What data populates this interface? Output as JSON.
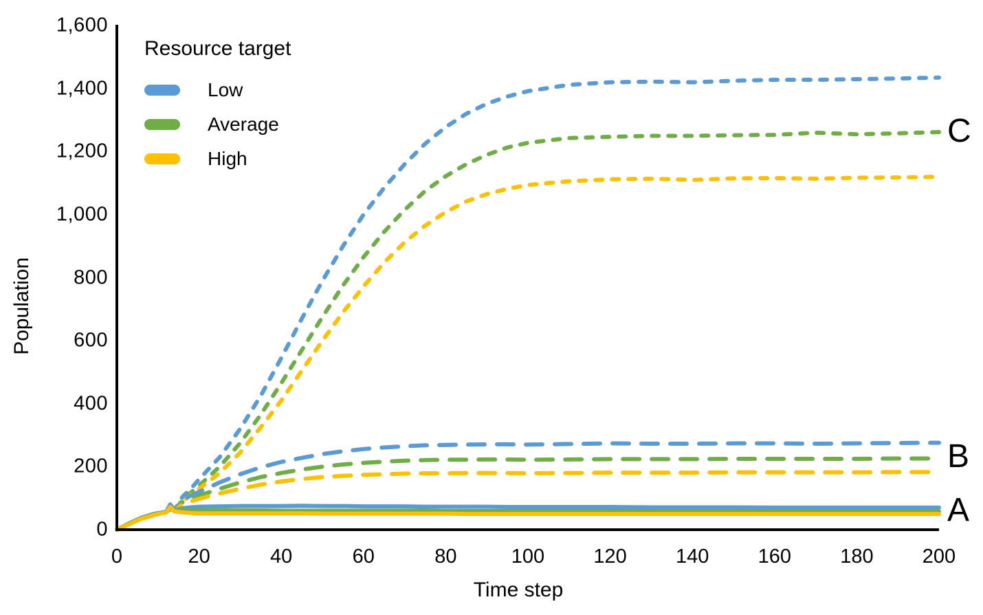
{
  "chart_data": {
    "type": "line",
    "title": "",
    "xlabel": "Time step",
    "ylabel": "Population",
    "xlim": [
      0,
      200
    ],
    "ylim": [
      0,
      1600
    ],
    "grid": false,
    "xtick_values": [
      0,
      20,
      40,
      60,
      80,
      100,
      120,
      140,
      160,
      180,
      200
    ],
    "xtick_labels": [
      "0",
      "20",
      "40",
      "60",
      "80",
      "100",
      "120",
      "140",
      "160",
      "180",
      "200"
    ],
    "ytick_values": [
      0,
      200,
      400,
      600,
      800,
      1000,
      1200,
      1400,
      1600
    ],
    "ytick_labels": [
      "0",
      "200",
      "400",
      "600",
      "800",
      "1,000",
      "1,200",
      "1,400",
      "1,600"
    ],
    "legend": {
      "title": "Resource target",
      "position": "top-left",
      "entries": [
        {
          "label": "Low",
          "color": "#5B9BD5"
        },
        {
          "label": "Average",
          "color": "#70AD47"
        },
        {
          "label": "High",
          "color": "#FFC000"
        }
      ]
    },
    "annotations": [
      {
        "text": "C",
        "x": 202,
        "y": 1265
      },
      {
        "text": "B",
        "x": 202,
        "y": 232
      },
      {
        "text": "A",
        "x": 202,
        "y": 61
      }
    ],
    "x": [
      0,
      3,
      6,
      9,
      12,
      13,
      14,
      16,
      18,
      20,
      25,
      30,
      35,
      40,
      45,
      50,
      55,
      60,
      65,
      70,
      75,
      80,
      85,
      90,
      95,
      100,
      110,
      120,
      130,
      140,
      150,
      160,
      170,
      180,
      190,
      200
    ],
    "series": [
      {
        "name": "C Low",
        "group": "C",
        "resource_target": "Low",
        "color": "#5B9BD5",
        "dash": "short",
        "values": [
          0,
          20,
          38,
          50,
          57,
          80,
          62,
          105,
          130,
          160,
          230,
          320,
          425,
          545,
          670,
          790,
          900,
          1000,
          1085,
          1160,
          1225,
          1278,
          1320,
          1352,
          1375,
          1392,
          1412,
          1420,
          1422,
          1420,
          1425,
          1428,
          1428,
          1430,
          1432,
          1435
        ]
      },
      {
        "name": "C Average",
        "group": "C",
        "resource_target": "Average",
        "color": "#70AD47",
        "dash": "short",
        "values": [
          0,
          19,
          36,
          48,
          56,
          66,
          60,
          95,
          118,
          140,
          200,
          275,
          365,
          465,
          570,
          675,
          775,
          865,
          945,
          1015,
          1075,
          1122,
          1160,
          1190,
          1213,
          1228,
          1243,
          1247,
          1250,
          1250,
          1252,
          1253,
          1260,
          1255,
          1258,
          1262
        ]
      },
      {
        "name": "C High",
        "group": "C",
        "resource_target": "High",
        "color": "#FFC000",
        "dash": "short",
        "values": [
          0,
          18,
          35,
          47,
          55,
          72,
          58,
          90,
          110,
          130,
          180,
          245,
          325,
          410,
          505,
          600,
          690,
          772,
          848,
          912,
          965,
          1008,
          1042,
          1065,
          1082,
          1094,
          1106,
          1112,
          1114,
          1110,
          1115,
          1116,
          1114,
          1117,
          1118,
          1120
        ]
      },
      {
        "name": "B Low",
        "group": "B",
        "resource_target": "Low",
        "color": "#5B9BD5",
        "dash": "long",
        "values": [
          0,
          20,
          38,
          50,
          57,
          80,
          62,
          95,
          108,
          120,
          150,
          176,
          198,
          215,
          228,
          240,
          249,
          256,
          261,
          265,
          268,
          269,
          270,
          271,
          271,
          270,
          272,
          274,
          273,
          273,
          274,
          274,
          273,
          274,
          275,
          276
        ]
      },
      {
        "name": "B Average",
        "group": "B",
        "resource_target": "Average",
        "color": "#70AD47",
        "dash": "long",
        "values": [
          0,
          19,
          36,
          48,
          56,
          66,
          60,
          88,
          98,
          108,
          130,
          150,
          167,
          180,
          191,
          200,
          207,
          212,
          216,
          219,
          221,
          222,
          222,
          223,
          223,
          222,
          223,
          224,
          224,
          224,
          225,
          225,
          225,
          225,
          226,
          226
        ]
      },
      {
        "name": "B High",
        "group": "B",
        "resource_target": "High",
        "color": "#FFC000",
        "dash": "long",
        "values": [
          0,
          18,
          35,
          47,
          55,
          72,
          58,
          82,
          90,
          98,
          115,
          130,
          143,
          153,
          161,
          167,
          171,
          174,
          176,
          178,
          179,
          179,
          180,
          180,
          180,
          179,
          180,
          181,
          181,
          181,
          182,
          182,
          182,
          182,
          183,
          183
        ]
      },
      {
        "name": "A Low",
        "group": "A",
        "resource_target": "Low",
        "color": "#5B9BD5",
        "dash": "solid",
        "values": [
          0,
          20,
          38,
          50,
          57,
          80,
          62,
          68,
          71,
          73,
          74,
          75,
          75,
          75,
          76,
          75,
          75,
          74,
          74,
          74,
          73,
          73,
          73,
          73,
          72,
          72,
          72,
          72,
          71,
          71,
          71,
          70,
          70,
          70,
          70,
          70
        ]
      },
      {
        "name": "A Average",
        "group": "A",
        "resource_target": "Average",
        "color": "#70AD47",
        "dash": "solid",
        "values": [
          0,
          19,
          36,
          48,
          56,
          66,
          60,
          62,
          61,
          61,
          61,
          61,
          61,
          60,
          60,
          60,
          60,
          60,
          60,
          60,
          60,
          59,
          59,
          59,
          59,
          59,
          59,
          59,
          59,
          59,
          59,
          59,
          59,
          58,
          58,
          58
        ]
      },
      {
        "name": "A High",
        "group": "A",
        "resource_target": "High",
        "color": "#FFC000",
        "dash": "solid",
        "values": [
          0,
          18,
          35,
          47,
          55,
          72,
          58,
          55,
          53,
          52,
          52,
          52,
          52,
          52,
          52,
          51,
          51,
          51,
          51,
          51,
          51,
          51,
          50,
          50,
          50,
          50,
          50,
          50,
          50,
          50,
          50,
          50,
          50,
          50,
          50,
          50
        ]
      }
    ]
  }
}
